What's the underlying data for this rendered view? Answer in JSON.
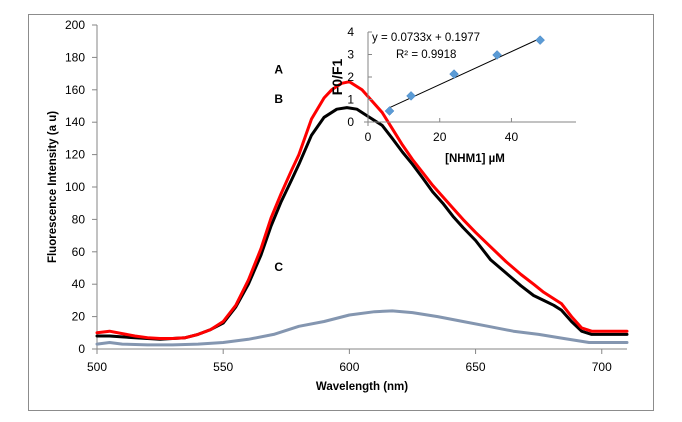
{
  "chart_data": [
    {
      "id": "main",
      "type": "line",
      "title": "",
      "xlabel": "Wavelength  (nm)",
      "ylabel": "Fluorescence Intensity (a u)",
      "xlim": [
        500,
        710
      ],
      "ylim": [
        0,
        200
      ],
      "xticks": [
        500,
        550,
        600,
        650,
        700
      ],
      "yticks": [
        0,
        20,
        40,
        60,
        80,
        100,
        120,
        140,
        160,
        180,
        200
      ],
      "grid": false,
      "series": [
        {
          "name": "A",
          "color": "#ff0000",
          "x": [
            500,
            505,
            510,
            515,
            520,
            525,
            530,
            535,
            540,
            545,
            550,
            555,
            560,
            565,
            569,
            573,
            577,
            580,
            585,
            590,
            593,
            597,
            600,
            605,
            609,
            613,
            617,
            621,
            625,
            629,
            633,
            637,
            641,
            645,
            650,
            656,
            662,
            668,
            673,
            677,
            681,
            684,
            688,
            692,
            696,
            700,
            705,
            710
          ],
          "y": [
            10,
            11,
            9.5,
            8,
            7,
            6.5,
            6.5,
            7,
            9,
            12,
            17,
            27,
            42.6,
            62,
            81,
            96,
            110,
            120,
            142,
            155,
            160,
            164,
            165,
            160,
            153,
            146,
            136,
            126,
            117,
            109,
            101,
            94,
            87,
            80,
            72,
            63,
            54,
            46,
            40,
            35,
            31,
            28,
            20,
            13,
            11,
            11,
            11,
            11
          ]
        },
        {
          "name": "B",
          "color": "#000000",
          "x": [
            500,
            505,
            510,
            515,
            520,
            525,
            530,
            535,
            540,
            545,
            550,
            555,
            560,
            565,
            569,
            573,
            577,
            580,
            585,
            590,
            595,
            599,
            603,
            607,
            613,
            617,
            621,
            625,
            629,
            633,
            637,
            641,
            645,
            650,
            656,
            662,
            668,
            673,
            677,
            681,
            684,
            688,
            692,
            696,
            700,
            705,
            710
          ],
          "y": [
            8,
            8,
            7.5,
            7,
            6.5,
            6,
            6.5,
            7,
            9,
            12,
            16,
            26,
            40,
            58,
            76,
            91,
            104,
            114,
            132,
            143,
            148,
            149,
            148,
            144,
            138,
            130,
            121.6,
            114,
            105.6,
            97,
            90,
            82,
            75,
            67,
            55,
            47,
            39,
            33,
            30,
            27,
            24,
            17,
            11,
            9,
            9,
            9,
            9
          ]
        },
        {
          "name": "C",
          "color": "#8496b0",
          "x": [
            500,
            505,
            510,
            520,
            530,
            540,
            550,
            560,
            570,
            580,
            590,
            600,
            610,
            617,
            625,
            635,
            645,
            655,
            665,
            675,
            685,
            695,
            700,
            710
          ],
          "y": [
            3,
            4,
            3,
            2.5,
            2.5,
            3,
            4,
            6,
            9,
            14,
            17,
            21,
            23,
            23.5,
            22.5,
            20,
            17,
            14,
            11,
            9,
            6.5,
            4,
            4,
            4
          ]
        }
      ],
      "annotations": [
        {
          "text": "A",
          "x": 572,
          "y": 170
        },
        {
          "text": "B",
          "x": 572,
          "y": 152
        },
        {
          "text": "C",
          "x": 572,
          "y": 48
        }
      ]
    },
    {
      "id": "inset",
      "type": "scatter",
      "title": "",
      "xlabel": "[NHM1] µM",
      "ylabel": "F0/F1",
      "xlim": [
        0,
        58
      ],
      "ylim": [
        0,
        4
      ],
      "xticks": [
        0,
        20,
        40
      ],
      "yticks": [
        0,
        1,
        2,
        3,
        4
      ],
      "grid": false,
      "series": [
        {
          "name": "F0/F1",
          "color": "#5b9bd5",
          "marker": "diamond",
          "x": [
            6,
            12,
            24,
            36,
            48
          ],
          "y": [
            0.49,
            1.16,
            2.13,
            2.98,
            3.64
          ]
        }
      ],
      "trendline": {
        "type": "linear",
        "slope": 0.0733,
        "intercept": 0.1977,
        "x_range": [
          6,
          48
        ],
        "color": "#000000",
        "equation_text": "y = 0.0733x + 0.1977",
        "r2_text": "R² = 0.9918"
      }
    }
  ]
}
